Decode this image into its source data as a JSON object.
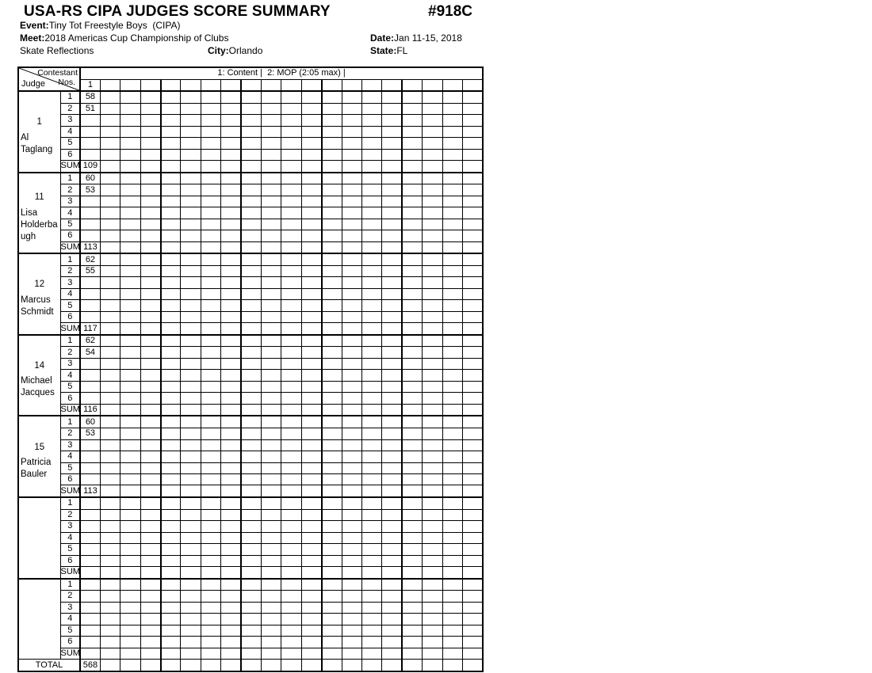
{
  "header": {
    "title": "USA-RS CIPA JUDGES SCORE SUMMARY",
    "doc_number": "#918C",
    "event_label": "Event:",
    "event_value": "Tiny Tot Freestyle Boys  (CIPA)",
    "meet_label": "Meet:",
    "meet_value": "2018 Americas Cup Championship of Clubs",
    "date_label": "Date:",
    "date_value": "Jan 11-15, 2018",
    "venue": "Skate Reflections",
    "city_label": "City:",
    "city_value": "Orlando",
    "state_label": "State:",
    "state_value": "FL"
  },
  "table": {
    "corner": {
      "top": "Contestant",
      "mid": "Nos.",
      "bottom": "Judge"
    },
    "scale_header": "1: Content |  2: MOP (2:05 max) |",
    "num_columns": 20,
    "group_size": 4,
    "contestant_numbers": [
      "1",
      "",
      "",
      "",
      "",
      "",
      "",
      "",
      "",
      "",
      "",
      "",
      "",
      "",
      "",
      "",
      "",
      "",
      "",
      ""
    ],
    "row_labels": [
      "1",
      "2",
      "3",
      "4",
      "5",
      "6",
      "SUM"
    ],
    "judges": [
      {
        "number": "1",
        "name": "Al Taglang",
        "scores": [
          "58",
          "51",
          "",
          "",
          "",
          ""
        ],
        "sum": "109"
      },
      {
        "number": "11",
        "name": "Lisa Holderbaugh",
        "scores": [
          "60",
          "53",
          "",
          "",
          "",
          ""
        ],
        "sum": "113"
      },
      {
        "number": "12",
        "name": "Marcus Schmidt",
        "scores": [
          "62",
          "55",
          "",
          "",
          "",
          ""
        ],
        "sum": "117"
      },
      {
        "number": "14",
        "name": "Michael Jacques",
        "scores": [
          "62",
          "54",
          "",
          "",
          "",
          ""
        ],
        "sum": "116"
      },
      {
        "number": "15",
        "name": "Patricia Bauler",
        "scores": [
          "60",
          "53",
          "",
          "",
          "",
          ""
        ],
        "sum": "113"
      },
      {
        "number": "",
        "name": "",
        "scores": [
          "",
          "",
          "",
          "",
          "",
          ""
        ],
        "sum": ""
      },
      {
        "number": "",
        "name": "",
        "scores": [
          "",
          "",
          "",
          "",
          "",
          ""
        ],
        "sum": ""
      }
    ],
    "total": {
      "label": "TOTAL",
      "value": "568"
    }
  }
}
